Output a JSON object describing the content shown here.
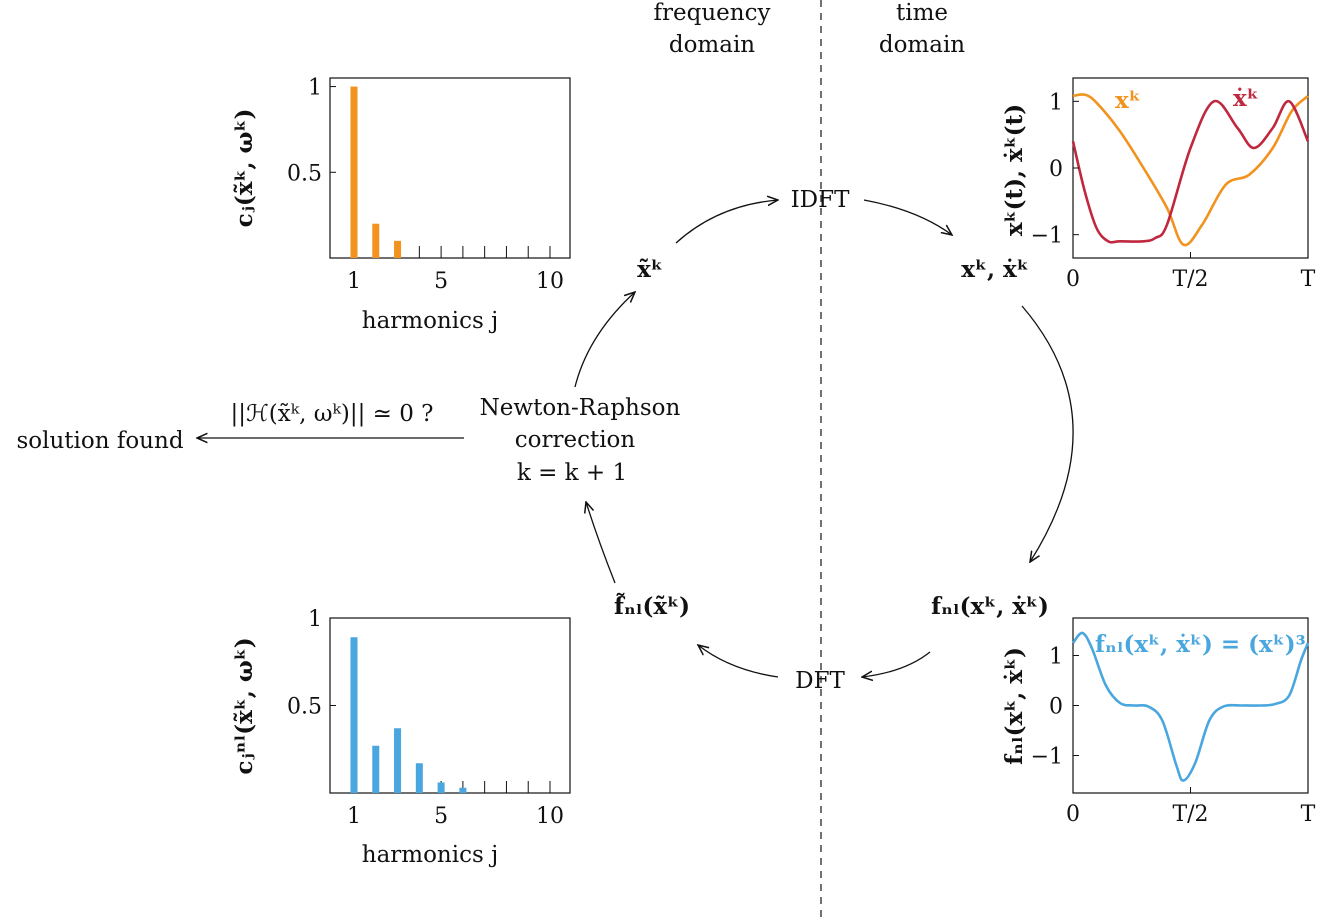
{
  "domain_labels": {
    "frequency_line1": "frequency",
    "frequency_line2": "domain",
    "time_line1": "time",
    "time_line2": "domain"
  },
  "nodes": {
    "idft": "IDFT",
    "dft": "DFT",
    "newton_line1": "Newton-Raphson",
    "newton_line2": "correction",
    "newton_line3": "k = k + 1",
    "convergence_check": "||ℋ(x̃ᵏ, ωᵏ)|| ≃ 0 ?",
    "solution": "solution found",
    "x_tilde": "x̃ᵏ",
    "x_xdot": "xᵏ, ẋᵏ",
    "fnl_time": "fₙₗ(xᵏ, ẋᵏ)",
    "fnl_tilde": "f̃ₙₗ(x̃ᵏ)"
  },
  "colors": {
    "orange": "#f2921f",
    "crimson": "#c0283f",
    "blue": "#4aa6de"
  },
  "chart_data": [
    {
      "type": "bar",
      "ylabel": "cⱼ(x̃ᵏ, ωᵏ)",
      "xlabel": "harmonics j",
      "harmonics": [
        1,
        2,
        3,
        4,
        5,
        6,
        7,
        8,
        9,
        10
      ],
      "values": [
        1.0,
        0.2,
        0.1,
        0,
        0,
        0,
        0,
        0,
        0,
        0
      ],
      "xticks": [
        "1",
        "5",
        "10"
      ],
      "yticks": [
        "0.5",
        "1"
      ],
      "ylim": [
        0,
        1.05
      ],
      "color": "#f2921f"
    },
    {
      "type": "line",
      "ylabel": "xᵏ(t), ẋᵏ(t)",
      "xticks": [
        "0",
        "T/2",
        "T"
      ],
      "yticks": [
        "−1",
        "0",
        "1"
      ],
      "ylim": [
        -1.35,
        1.35
      ],
      "series": [
        {
          "name": "xᵏ",
          "color": "#f2921f",
          "t": [
            0,
            0.05,
            0.1,
            0.2,
            0.3,
            0.4,
            0.47,
            0.55,
            0.65,
            0.75,
            0.85,
            0.93,
            1.0
          ],
          "values": [
            1.08,
            1.1,
            0.98,
            0.55,
            0.0,
            -0.6,
            -1.15,
            -0.85,
            -0.25,
            -0.1,
            0.3,
            0.85,
            1.08
          ]
        },
        {
          "name": "ẋᵏ",
          "color": "#c0283f",
          "t": [
            0,
            0.05,
            0.1,
            0.15,
            0.2,
            0.3,
            0.35,
            0.4,
            0.5,
            0.6,
            0.7,
            0.77,
            0.85,
            0.92,
            1.0
          ],
          "values": [
            0.4,
            -0.35,
            -0.9,
            -1.1,
            -1.1,
            -1.1,
            -1.05,
            -0.85,
            0.3,
            1.0,
            0.6,
            0.3,
            0.6,
            1.0,
            0.4
          ]
        }
      ]
    },
    {
      "type": "bar",
      "ylabel": "cⱼⁿˡ(x̃ᵏ, ωᵏ)",
      "xlabel": "harmonics j",
      "harmonics": [
        1,
        2,
        3,
        4,
        5,
        6,
        7,
        8,
        9,
        10
      ],
      "values": [
        0.89,
        0.27,
        0.37,
        0.17,
        0.06,
        0.03,
        0,
        0,
        0,
        0
      ],
      "xticks": [
        "1",
        "5",
        "10"
      ],
      "yticks": [
        "0.5",
        "1"
      ],
      "ylim": [
        0,
        1.0
      ],
      "color": "#4aa6de"
    },
    {
      "type": "line",
      "ylabel": "fₙₗ(xᵏ, ẋᵏ)",
      "xticks": [
        "0",
        "T/2",
        "T"
      ],
      "yticks": [
        "−1",
        "0",
        "1"
      ],
      "ylim": [
        -1.75,
        1.75
      ],
      "series": [
        {
          "name": "fₙₗ(xᵏ, ẋᵏ) = (xᵏ)³",
          "color": "#4aa6de",
          "t": [
            0,
            0.04,
            0.08,
            0.14,
            0.2,
            0.26,
            0.32,
            0.38,
            0.44,
            0.47,
            0.52,
            0.58,
            0.64,
            0.72,
            0.8,
            0.86,
            0.92,
            0.97,
            1.0
          ],
          "values": [
            1.25,
            1.45,
            1.15,
            0.4,
            0.05,
            0.0,
            -0.02,
            -0.3,
            -1.2,
            -1.5,
            -1.15,
            -0.3,
            -0.02,
            0.0,
            0.0,
            0.03,
            0.2,
            0.9,
            1.25
          ]
        }
      ]
    }
  ]
}
